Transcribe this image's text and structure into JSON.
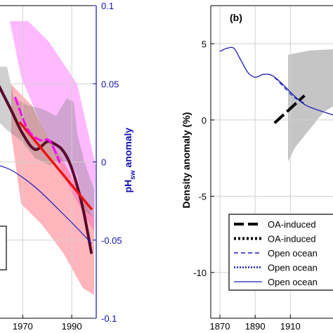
{
  "chart_data": [
    {
      "type": "line",
      "panel": "a",
      "xlim": [
        1955,
        2000
      ],
      "x_ticks": [
        "1970",
        "1990"
      ],
      "x_tick_values": [
        1970,
        1990
      ],
      "ylim_right": [
        -0.1,
        0.1
      ],
      "y_right_ticks": [
        "0.1",
        "0.05",
        "0",
        "-0.05",
        "-0.1"
      ],
      "y_right_tick_values": [
        0.1,
        0.05,
        0,
        -0.05,
        -0.1
      ],
      "y_right_label_main": "pH",
      "y_right_label_sub": "sw",
      "y_right_label_rest": " anomaly",
      "grid": true,
      "series": [
        {
          "color": "#5a0a2a",
          "x": [
            1955,
            1965,
            1970,
            1975,
            1980,
            1983,
            1986,
            1989,
            1992,
            1995,
            1998
          ],
          "y": [
            0.065,
            0.034,
            0.018,
            0.008,
            0.013,
            0.0115,
            0.008,
            0.0,
            -0.014,
            -0.033,
            -0.058
          ]
        },
        {
          "color": "#ee1111",
          "x": [
            1969,
            1998
          ],
          "y": [
            0.025,
            -0.03
          ]
        },
        {
          "color": "#ff00ff",
          "x": [
            1967,
            1972,
            1977,
            1981,
            1985
          ],
          "y": [
            0.041,
            0.021,
            0.014,
            0.0135,
            0.0
          ]
        },
        {
          "color": "#1a1ab8",
          "x": [
            1955,
            1965,
            1975,
            1985,
            1992,
            1998
          ],
          "y": [
            0.0,
            -0.005,
            -0.016,
            -0.031,
            -0.042,
            -0.052
          ]
        }
      ]
    },
    {
      "type": "line",
      "panel": "b",
      "panel_label": "(b)",
      "xlim": [
        1870,
        1935
      ],
      "x_ticks": [
        "1870",
        "1890",
        "1910"
      ],
      "x_tick_values": [
        1870,
        1890,
        1910
      ],
      "ylim": [
        -13,
        7.5
      ],
      "y_ticks": [
        "5",
        "0",
        "-5",
        "-10"
      ],
      "y_tick_values": [
        5,
        0,
        -5,
        -10
      ],
      "ylabel": "Density anomaly (%)",
      "grid": true,
      "series": [
        {
          "color": "#1a1ab8",
          "x": [
            1870,
            1874,
            1878,
            1882,
            1886,
            1890,
            1895,
            1900,
            1906,
            1913,
            1920,
            1935
          ],
          "y": [
            4.5,
            4.7,
            4.7,
            3.9,
            3.1,
            2.8,
            3.0,
            2.9,
            2.3,
            1.5,
            0.9,
            0.3
          ]
        },
        {
          "color": "#1a1ab8",
          "dash": "6 4",
          "x": [
            1901,
            1906,
            1912,
            1918
          ],
          "y": [
            2.8,
            2.2,
            1.5,
            1.1
          ]
        },
        {
          "color": "#000000",
          "dash": "18 6",
          "x": [
            1901,
            1918
          ],
          "y": [
            -0.2,
            1.6
          ]
        }
      ],
      "legend": [
        {
          "label": "OA-induced",
          "style": "long-dash",
          "color": "#000000"
        },
        {
          "label": "OA-induced",
          "style": "dotted",
          "color": "#000000"
        },
        {
          "label": "Open ocean",
          "style": "dashed",
          "color": "#1a1ab8"
        },
        {
          "label": "Open ocean",
          "style": "dotted",
          "color": "#1a1ab8"
        },
        {
          "label": "Open ocean",
          "style": "solid",
          "color": "#1a1ab8"
        }
      ]
    }
  ]
}
